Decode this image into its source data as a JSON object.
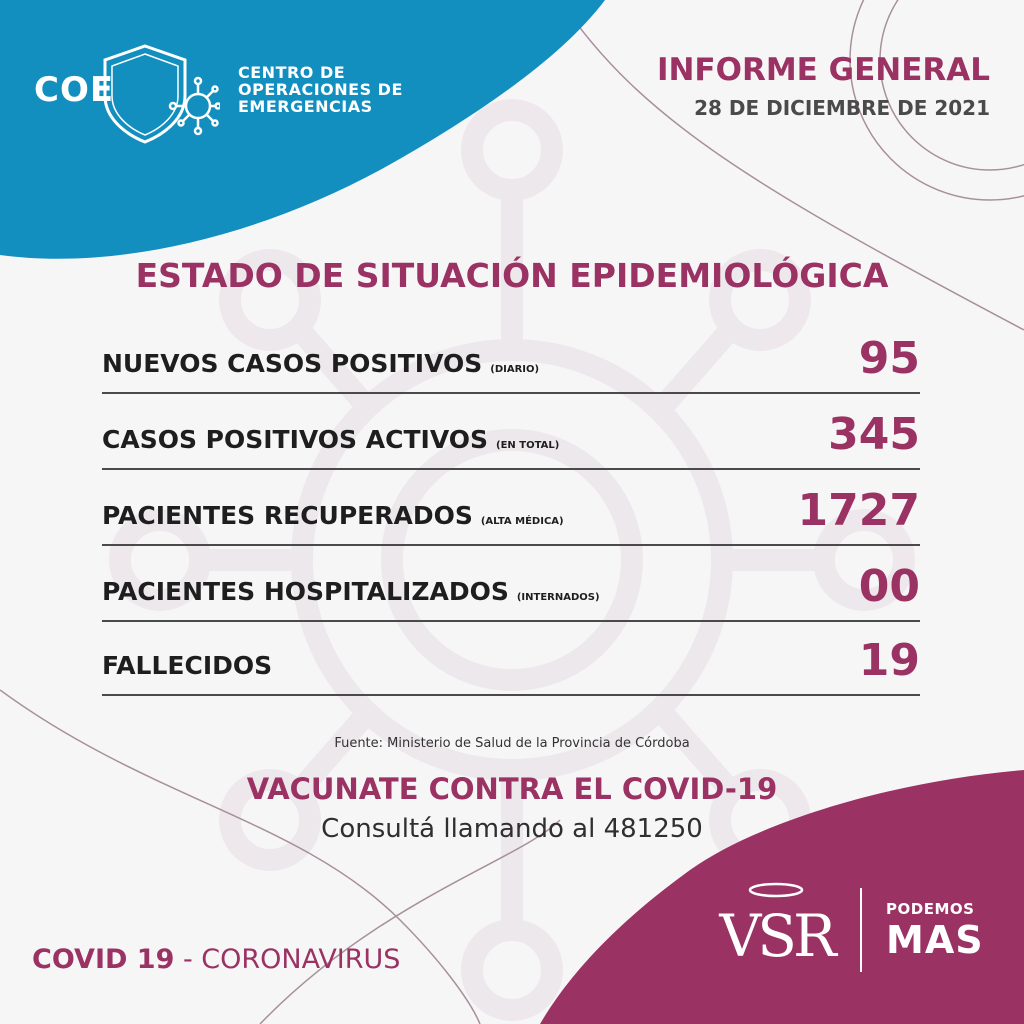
{
  "header": {
    "coe_logo_text": "COE",
    "coe_name_lines": [
      "CENTRO DE",
      "OPERACIONES DE",
      "EMERGENCIAS"
    ],
    "report_title": "INFORME GENERAL",
    "report_date": "28 DE DICIEMBRE DE 2021"
  },
  "main": {
    "section_title": "ESTADO DE SITUACIÓN EPIDEMIOLÓGICA",
    "stats": [
      {
        "label": "NUEVOS CASOS POSITIVOS",
        "note": "(DIARIO)",
        "value": "95"
      },
      {
        "label": "CASOS POSITIVOS ACTIVOS",
        "note": "(EN TOTAL)",
        "value": "345"
      },
      {
        "label": "PACIENTES RECUPERADOS",
        "note": "(ALTA MÉDICA)",
        "value": "1727"
      },
      {
        "label": "PACIENTES HOSPITALIZADOS",
        "note": "(INTERNADOS)",
        "value": "00"
      },
      {
        "label": "FALLECIDOS",
        "note": "",
        "value": "19"
      }
    ],
    "source": "Fuente: Ministerio de Salud de la Provincia de Córdoba",
    "vaccine_title": "VACUNATE CONTRA EL COVID-19",
    "vaccine_phone": "Consultá llamando al 481250"
  },
  "footer": {
    "covid_bold": "COVID 19",
    "covid_rest": " - CORONAVIRUS",
    "vsr_logo_text": "VSR",
    "podemos": "PODEMOS",
    "mas": "MAS"
  },
  "colors": {
    "blue": "#138fbf",
    "magenta": "#9a3263",
    "dark_text": "#1e1e1e",
    "background": "#f7f6f7"
  },
  "icons": [
    "coe-shield-logo",
    "virus-icon",
    "vsr-logo"
  ]
}
